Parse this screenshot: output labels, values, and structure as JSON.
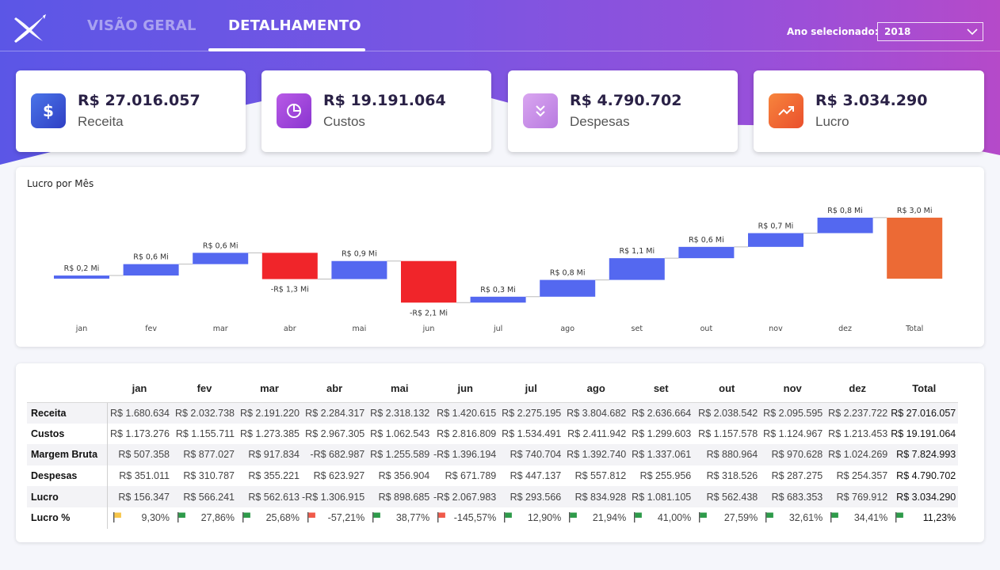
{
  "header": {
    "tabs": [
      {
        "label": "VISÃO GERAL",
        "active": false
      },
      {
        "label": "DETALHAMENTO",
        "active": true
      }
    ],
    "year_label": "Ano selecionado:",
    "year_value": "2018",
    "logo_icon": "x-logo-icon"
  },
  "kpis": [
    {
      "value": "R$ 27.016.057",
      "label": "Receita",
      "icon": "dollar-icon",
      "color": "#3b5bdb"
    },
    {
      "value": "R$ 19.191.064",
      "label": "Custos",
      "icon": "pie-chart-icon",
      "color": "#a445dc"
    },
    {
      "value": "R$ 4.790.702",
      "label": "Despesas",
      "icon": "chevrons-down-icon",
      "color": "#c78be8"
    },
    {
      "value": "R$ 3.034.290",
      "label": "Lucro",
      "icon": "trending-up-icon",
      "color": "#f0642f"
    }
  ],
  "chart_data": {
    "type": "waterfall",
    "title": "Lucro por Mês",
    "categories": [
      "jan",
      "fev",
      "mar",
      "abr",
      "mai",
      "jun",
      "jul",
      "ago",
      "set",
      "out",
      "nov",
      "dez",
      "Total"
    ],
    "values": [
      0.156347,
      0.566241,
      0.562613,
      -1.306915,
      0.898685,
      -2.067983,
      0.293566,
      0.834928,
      1.081105,
      0.562438,
      0.683353,
      0.769912,
      3.03429
    ],
    "data_labels": [
      "R$ 0,2 Mi",
      "R$ 0,6 Mi",
      "R$ 0,6 Mi",
      "-R$ 1,3 Mi",
      "R$ 0,9 Mi",
      "-R$ 2,1 Mi",
      "R$ 0,3 Mi",
      "R$ 0,8 Mi",
      "R$ 1,1 Mi",
      "R$ 0,6 Mi",
      "R$ 0,7 Mi",
      "R$ 0,8 Mi",
      "R$ 3,0 Mi"
    ],
    "colors": {
      "increase": "#5468f0",
      "decrease": "#f0252a",
      "total": "#ec6a35"
    },
    "grid": false
  },
  "table": {
    "columns": [
      "jan",
      "fev",
      "mar",
      "abr",
      "mai",
      "jun",
      "jul",
      "ago",
      "set",
      "out",
      "nov",
      "dez",
      "Total"
    ],
    "rows": [
      {
        "label": "Receita",
        "values": [
          "R$ 1.680.634",
          "R$ 2.032.738",
          "R$ 2.191.220",
          "R$ 2.284.317",
          "R$ 2.318.132",
          "R$ 1.420.615",
          "R$ 2.275.195",
          "R$ 3.804.682",
          "R$ 2.636.664",
          "R$ 2.038.542",
          "R$ 2.095.595",
          "R$ 2.237.722",
          "R$ 27.016.057"
        ]
      },
      {
        "label": "Custos",
        "values": [
          "R$ 1.173.276",
          "R$ 1.155.711",
          "R$ 1.273.385",
          "R$ 2.967.305",
          "R$ 1.062.543",
          "R$ 2.816.809",
          "R$ 1.534.491",
          "R$ 2.411.942",
          "R$ 1.299.603",
          "R$ 1.157.578",
          "R$ 1.124.967",
          "R$ 1.213.453",
          "R$ 19.191.064"
        ]
      },
      {
        "label": "Margem Bruta",
        "values": [
          "R$ 507.358",
          "R$ 877.027",
          "R$ 917.834",
          "-R$ 682.987",
          "R$ 1.255.589",
          "-R$ 1.396.194",
          "R$ 740.704",
          "R$ 1.392.740",
          "R$ 1.337.061",
          "R$ 880.964",
          "R$ 970.628",
          "R$ 1.024.269",
          "R$ 7.824.993"
        ]
      },
      {
        "label": "Despesas",
        "values": [
          "R$ 351.011",
          "R$ 310.787",
          "R$ 355.221",
          "R$ 623.927",
          "R$ 356.904",
          "R$ 671.789",
          "R$ 447.137",
          "R$ 557.812",
          "R$ 255.956",
          "R$ 318.526",
          "R$ 287.275",
          "R$ 254.357",
          "R$ 4.790.702"
        ]
      },
      {
        "label": "Lucro",
        "values": [
          "R$ 156.347",
          "R$ 566.241",
          "R$ 562.613",
          "-R$ 1.306.915",
          "R$ 898.685",
          "-R$ 2.067.983",
          "R$ 293.566",
          "R$ 834.928",
          "R$ 1.081.105",
          "R$ 562.438",
          "R$ 683.353",
          "R$ 769.912",
          "R$ 3.034.290"
        ]
      },
      {
        "label": "Lucro %",
        "values": [
          "9,30%",
          "27,86%",
          "25,68%",
          "-57,21%",
          "38,77%",
          "-145,57%",
          "12,90%",
          "21,94%",
          "41,00%",
          "27,59%",
          "32,61%",
          "34,41%",
          "11,23%"
        ],
        "flags": [
          "yellow",
          "green",
          "green",
          "red",
          "green",
          "red",
          "green",
          "green",
          "green",
          "green",
          "green",
          "green",
          "green"
        ]
      }
    ],
    "flag_colors": {
      "yellow": "#f7c64a",
      "green": "#2e9b4a",
      "red": "#f05a4a"
    }
  }
}
